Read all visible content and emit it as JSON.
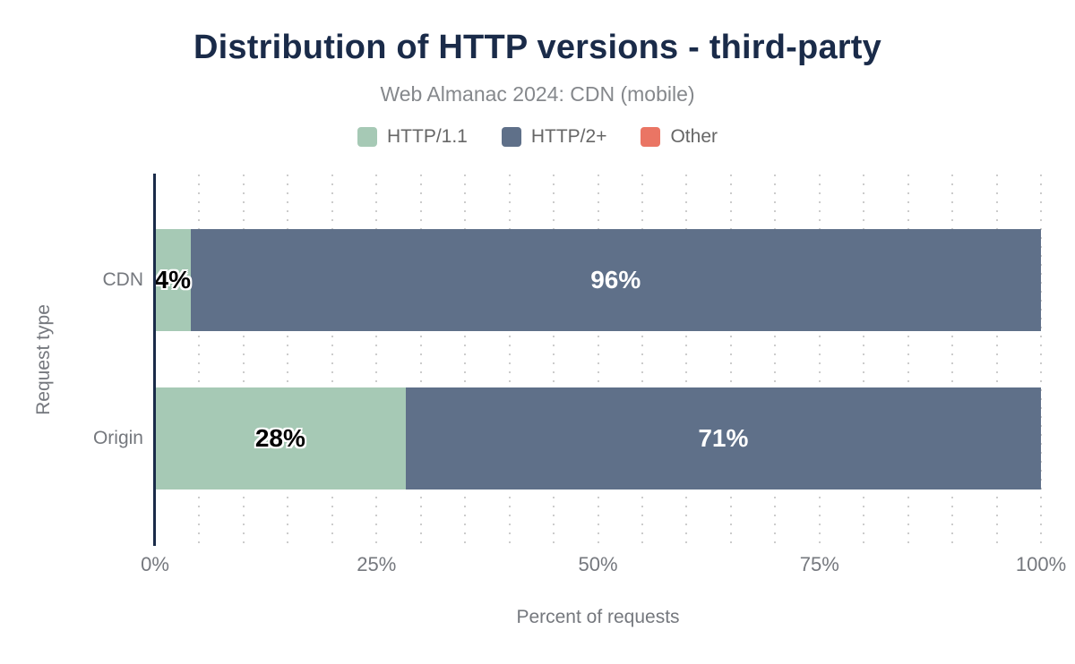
{
  "chart_data": {
    "type": "bar",
    "orientation": "horizontal",
    "stacked": true,
    "title": "Distribution of HTTP versions - third-party",
    "subtitle": "Web Almanac 2024: CDN (mobile)",
    "categories": [
      "CDN",
      "Origin"
    ],
    "series": [
      {
        "name": "HTTP/1.1",
        "color": "#a6c9b5",
        "label_color": "#000000",
        "values": [
          4,
          28
        ]
      },
      {
        "name": "HTTP/2+",
        "color": "#5f7089",
        "label_color": "#ffffff",
        "values": [
          96,
          71
        ]
      },
      {
        "name": "Other",
        "color": "#ea7564",
        "label_color": "#ffffff",
        "values": [
          0,
          0
        ]
      }
    ],
    "xlabel": "Percent of requests",
    "ylabel": "Request type",
    "x_ticks": [
      "0%",
      "25%",
      "50%",
      "75%",
      "100%"
    ],
    "xlim": [
      0,
      100
    ],
    "grid": "dotted vertical lines every 5%",
    "legend_position": "top",
    "value_suffix": "%"
  },
  "colors": {
    "title": "#1a2b49",
    "axis_line": "#1a2b49",
    "muted_text": "#75787e",
    "subtitle_text": "#85888c",
    "legend_text": "#666666",
    "grid_dot": "#cccccc",
    "background": "#ffffff"
  }
}
